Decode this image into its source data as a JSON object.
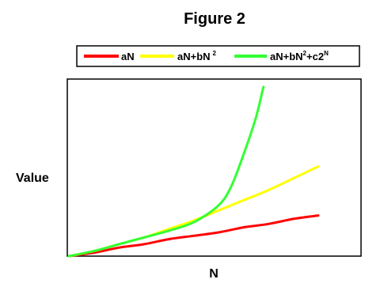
{
  "chart_data": {
    "type": "line",
    "title": "Figure 2",
    "xlabel": "N",
    "ylabel": "Value",
    "legend_position": "top",
    "grid": false,
    "axis_ticks": false,
    "legend": [
      {
        "base": "aN",
        "sup": "",
        "tail": "",
        "sup2": ""
      },
      {
        "base": "aN+bN",
        "sup": "2",
        "tail": "",
        "sup2": ""
      },
      {
        "base": "aN+bN",
        "sup": "2",
        "tail": "+c2",
        "sup2": "N"
      }
    ],
    "xlim": [
      0,
      100
    ],
    "ylim": [
      0,
      100
    ],
    "series": [
      {
        "color": "#ff0000",
        "x": [
          0,
          10,
          20,
          30,
          40,
          50,
          60,
          70,
          80,
          90,
          100
        ],
        "y": [
          0,
          2,
          5,
          7,
          10,
          12,
          14,
          17,
          19,
          22,
          24
        ]
      },
      {
        "color": "#ffff00",
        "x": [
          0,
          10,
          20,
          30,
          40,
          50,
          60,
          70,
          80,
          90,
          100
        ],
        "y": [
          0,
          3,
          7,
          11,
          16,
          21,
          27,
          33,
          39,
          46,
          53
        ]
      },
      {
        "color": "#33ff33",
        "x": [
          0,
          10,
          20,
          30,
          40,
          50,
          60,
          65,
          70,
          75,
          78
        ],
        "y": [
          0,
          3,
          7,
          11,
          15,
          20,
          30,
          41,
          60,
          82,
          100
        ]
      }
    ]
  }
}
